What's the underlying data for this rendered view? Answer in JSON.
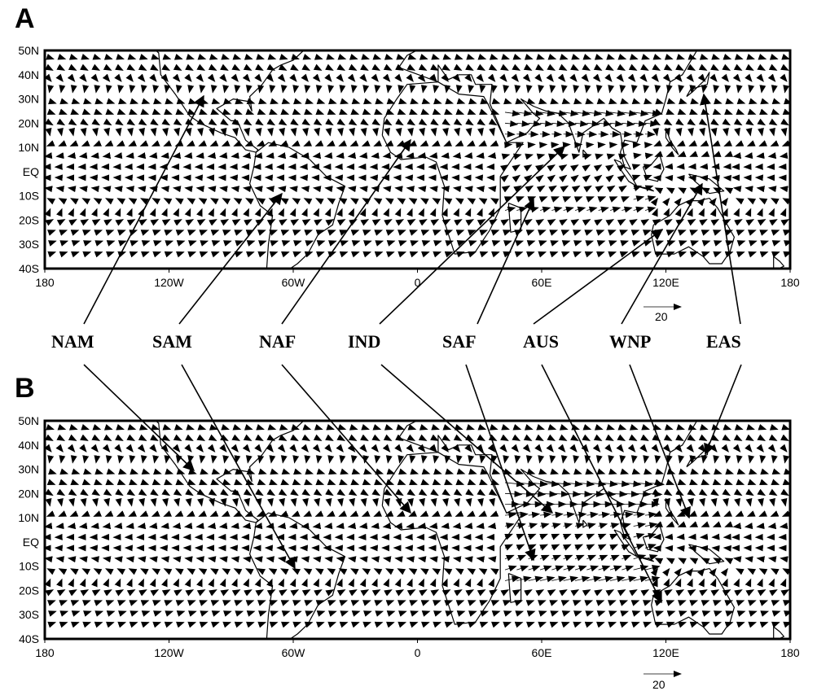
{
  "panels": [
    {
      "letter": "A",
      "ref_vector_value": "20"
    },
    {
      "letter": "B",
      "ref_vector_value": "20"
    }
  ],
  "lon_ticks": [
    "180",
    "120W",
    "60W",
    "0",
    "60E",
    "120E",
    "180"
  ],
  "lat_ticks": [
    "50N",
    "40N",
    "30N",
    "20N",
    "10N",
    "EQ",
    "10S",
    "20S",
    "30S",
    "40S"
  ],
  "regions": [
    {
      "label": "NAM"
    },
    {
      "label": "SAM"
    },
    {
      "label": "NAF"
    },
    {
      "label": "IND"
    },
    {
      "label": "SAF"
    },
    {
      "label": "AUS"
    },
    {
      "label": "WNP"
    },
    {
      "label": "EAS"
    }
  ]
}
